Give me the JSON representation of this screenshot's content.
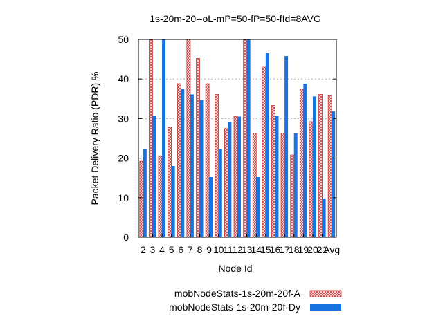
{
  "chart_data": {
    "type": "bar",
    "title": "1s-20m-20--oL-mP=50-fP=50-fId=8AVG",
    "xlabel": "Node Id",
    "ylabel": "Packet Delivery Ratio (PDR) %",
    "ylim": [
      0,
      50
    ],
    "yticks": [
      "0",
      "10",
      "20",
      "30",
      "40",
      "50"
    ],
    "grid": "horizontal dashed at y=40 and y=30",
    "legend_position": "bottom-right",
    "categories": [
      "2",
      "3",
      "4",
      "5",
      "6",
      "7",
      "8",
      "9",
      "10",
      "11",
      "12",
      "13",
      "14",
      "15",
      "16",
      "17",
      "18",
      "19",
      "20",
      "21",
      "Avg"
    ],
    "series": [
      {
        "name": "mobNodeStats-1s-20m-20f-A",
        "pattern": "crosshatch",
        "color": "#cc3333",
        "values": [
          19.2,
          50,
          20.5,
          27.8,
          38.8,
          50,
          45.2,
          38.8,
          36.1,
          27.5,
          30.5,
          50,
          26.3,
          43.0,
          33.3,
          26.3,
          20.8,
          37.5,
          29.2,
          36.1,
          35.8
        ]
      },
      {
        "name": "mobNodeStats-1s-20m-20f-Dy",
        "pattern": "solid",
        "color": "#1874e0",
        "values": [
          22.2,
          30.6,
          50,
          18.0,
          37.5,
          36.1,
          34.7,
          15.2,
          22.2,
          29.2,
          30.5,
          50,
          15.2,
          46.5,
          30.6,
          45.8,
          26.3,
          38.8,
          35.6,
          9.8,
          31.8
        ]
      }
    ]
  }
}
